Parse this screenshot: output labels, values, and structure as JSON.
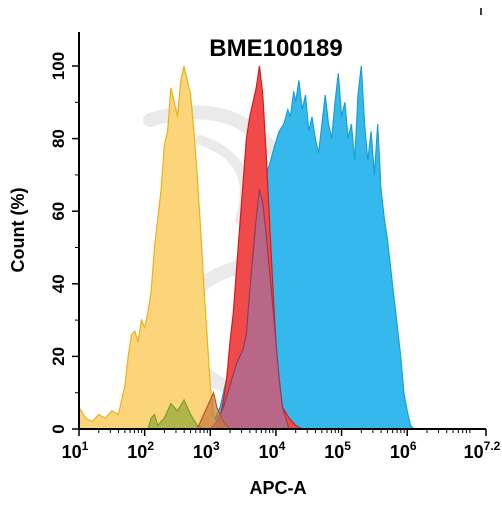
{
  "chart_data": {
    "type": "area",
    "title": "BME100189",
    "xlabel": "APC-A",
    "ylabel": "Count  (%)",
    "xscale": "log",
    "xlim": [
      1,
      7.2
    ],
    "ylim": [
      0,
      100
    ],
    "yticks": [
      0,
      20,
      40,
      60,
      80,
      100
    ],
    "xticks": [
      {
        "base": "10",
        "exp": "1",
        "value": 1
      },
      {
        "base": "10",
        "exp": "2",
        "value": 2
      },
      {
        "base": "10",
        "exp": "3",
        "value": 3
      },
      {
        "base": "10",
        "exp": "4",
        "value": 4
      },
      {
        "base": "10",
        "exp": "5",
        "value": 5
      },
      {
        "base": "10",
        "exp": "6",
        "value": 6
      },
      {
        "base": "10",
        "exp": "7.2",
        "value": 7.2
      }
    ],
    "grid": false,
    "series": [
      {
        "color": "#35b9ec",
        "stroke": "#1a9fd4",
        "points": [
          [
            2.95,
            0
          ],
          [
            3.05,
            2
          ],
          [
            3.15,
            6
          ],
          [
            3.25,
            14
          ],
          [
            3.35,
            22
          ],
          [
            3.45,
            30
          ],
          [
            3.55,
            44
          ],
          [
            3.65,
            52
          ],
          [
            3.72,
            60
          ],
          [
            3.78,
            68
          ],
          [
            3.85,
            70
          ],
          [
            3.92,
            74
          ],
          [
            3.98,
            78
          ],
          [
            4.05,
            82
          ],
          [
            4.12,
            84
          ],
          [
            4.18,
            88
          ],
          [
            4.22,
            86
          ],
          [
            4.27,
            93
          ],
          [
            4.3,
            90
          ],
          [
            4.35,
            96
          ],
          [
            4.4,
            88
          ],
          [
            4.45,
            92
          ],
          [
            4.5,
            82
          ],
          [
            4.55,
            86
          ],
          [
            4.6,
            80
          ],
          [
            4.65,
            76
          ],
          [
            4.7,
            84
          ],
          [
            4.75,
            92
          ],
          [
            4.8,
            84
          ],
          [
            4.85,
            80
          ],
          [
            4.9,
            90
          ],
          [
            4.95,
            98
          ],
          [
            5.0,
            86
          ],
          [
            5.05,
            90
          ],
          [
            5.1,
            80
          ],
          [
            5.15,
            84
          ],
          [
            5.2,
            74
          ],
          [
            5.25,
            92
          ],
          [
            5.3,
            100
          ],
          [
            5.35,
            84
          ],
          [
            5.4,
            74
          ],
          [
            5.45,
            82
          ],
          [
            5.5,
            70
          ],
          [
            5.55,
            84
          ],
          [
            5.6,
            66
          ],
          [
            5.65,
            58
          ],
          [
            5.7,
            52
          ],
          [
            5.75,
            44
          ],
          [
            5.8,
            36
          ],
          [
            5.85,
            28
          ],
          [
            5.9,
            20
          ],
          [
            5.95,
            10
          ],
          [
            6.0,
            5
          ],
          [
            6.05,
            1
          ],
          [
            6.1,
            0
          ]
        ]
      },
      {
        "color": "#fcd57a",
        "stroke": "#ecb020",
        "points": [
          [
            1.0,
            6
          ],
          [
            1.1,
            3
          ],
          [
            1.2,
            2
          ],
          [
            1.3,
            4
          ],
          [
            1.4,
            3
          ],
          [
            1.5,
            5
          ],
          [
            1.6,
            4
          ],
          [
            1.7,
            12
          ],
          [
            1.75,
            20
          ],
          [
            1.8,
            26
          ],
          [
            1.85,
            27
          ],
          [
            1.9,
            24
          ],
          [
            1.95,
            30
          ],
          [
            2.0,
            28
          ],
          [
            2.05,
            32
          ],
          [
            2.1,
            38
          ],
          [
            2.15,
            50
          ],
          [
            2.2,
            58
          ],
          [
            2.25,
            66
          ],
          [
            2.3,
            78
          ],
          [
            2.35,
            82
          ],
          [
            2.4,
            94
          ],
          [
            2.45,
            90
          ],
          [
            2.5,
            86
          ],
          [
            2.55,
            96
          ],
          [
            2.6,
            100
          ],
          [
            2.65,
            96
          ],
          [
            2.7,
            92
          ],
          [
            2.75,
            82
          ],
          [
            2.8,
            70
          ],
          [
            2.85,
            56
          ],
          [
            2.9,
            40
          ],
          [
            2.95,
            26
          ],
          [
            3.0,
            12
          ],
          [
            3.05,
            4
          ],
          [
            3.1,
            0
          ]
        ]
      },
      {
        "color": "#f04a4a",
        "stroke": "#d41c1c",
        "points": [
          [
            3.1,
            0
          ],
          [
            3.15,
            3
          ],
          [
            3.2,
            8
          ],
          [
            3.25,
            14
          ],
          [
            3.3,
            24
          ],
          [
            3.35,
            32
          ],
          [
            3.4,
            44
          ],
          [
            3.45,
            56
          ],
          [
            3.5,
            68
          ],
          [
            3.55,
            80
          ],
          [
            3.6,
            86
          ],
          [
            3.65,
            90
          ],
          [
            3.7,
            94
          ],
          [
            3.75,
            100
          ],
          [
            3.8,
            92
          ],
          [
            3.85,
            76
          ],
          [
            3.9,
            58
          ],
          [
            3.95,
            40
          ],
          [
            4.0,
            24
          ],
          [
            4.05,
            12
          ],
          [
            4.1,
            6
          ],
          [
            4.2,
            3
          ],
          [
            4.3,
            1
          ],
          [
            4.4,
            0
          ]
        ]
      },
      {
        "color": "rgba(170,110,150,0.8)",
        "stroke": "#8c3e5e",
        "points": [
          [
            3.0,
            0
          ],
          [
            3.1,
            2
          ],
          [
            3.2,
            6
          ],
          [
            3.3,
            12
          ],
          [
            3.4,
            18
          ],
          [
            3.5,
            22
          ],
          [
            3.55,
            26
          ],
          [
            3.6,
            38
          ],
          [
            3.65,
            48
          ],
          [
            3.7,
            58
          ],
          [
            3.75,
            66
          ],
          [
            3.8,
            62
          ],
          [
            3.85,
            54
          ],
          [
            3.9,
            44
          ],
          [
            3.95,
            34
          ],
          [
            4.0,
            24
          ],
          [
            4.05,
            14
          ],
          [
            4.1,
            6
          ],
          [
            4.2,
            0
          ]
        ]
      },
      {
        "color": "rgba(150,170,60,0.75)",
        "stroke": "#7a9a30",
        "points": [
          [
            2.05,
            0
          ],
          [
            2.1,
            3
          ],
          [
            2.15,
            4
          ],
          [
            2.2,
            1
          ],
          [
            2.3,
            3
          ],
          [
            2.4,
            7
          ],
          [
            2.5,
            5
          ],
          [
            2.6,
            8
          ],
          [
            2.7,
            4
          ],
          [
            2.8,
            1
          ],
          [
            2.9,
            0
          ]
        ]
      },
      {
        "color": "rgba(200,120,60,0.7)",
        "stroke": "#b85a20",
        "points": [
          [
            2.8,
            0
          ],
          [
            2.9,
            4
          ],
          [
            3.0,
            8
          ],
          [
            3.05,
            10
          ],
          [
            3.1,
            6
          ],
          [
            3.2,
            2
          ],
          [
            3.3,
            0
          ]
        ]
      }
    ]
  }
}
